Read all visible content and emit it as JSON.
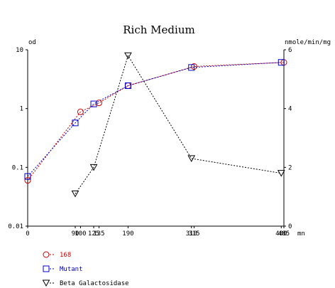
{
  "chart_data": {
    "type": "line",
    "title": "Rich Medium",
    "x_unit": "mn",
    "x_ticks": [
      "0",
      "90",
      "100",
      "125",
      "135",
      "190",
      "310",
      "315",
      "480",
      "485"
    ],
    "xlim": [
      0,
      485
    ],
    "y_left": {
      "unit": "od",
      "scale": "log",
      "lim": [
        0.01,
        10
      ],
      "ticks": [
        "0.01",
        "0.1",
        "1",
        "10"
      ]
    },
    "y_right": {
      "unit": "nmole/min/mg",
      "lim": [
        0,
        6
      ],
      "ticks": [
        "0",
        "2",
        "4",
        "6"
      ]
    },
    "grid": false,
    "legend_position": "bottom-left",
    "series": [
      {
        "name": "168",
        "axis": "left",
        "color": "#cc0000",
        "line_color": "#cc0000",
        "marker": "circle",
        "dashed": true,
        "x": [
          0,
          100,
          135,
          190,
          315,
          485
        ],
        "y": [
          0.06,
          0.88,
          1.25,
          2.45,
          5.2,
          6.1
        ]
      },
      {
        "name": "Mutant",
        "axis": "left",
        "color": "#0000cc",
        "line_color": "#0000cc",
        "marker": "square",
        "dashed": true,
        "x": [
          0,
          90,
          125,
          190,
          310,
          480
        ],
        "y": [
          0.07,
          0.57,
          1.2,
          2.45,
          5.0,
          6.1
        ]
      },
      {
        "name": "Beta Galactosidase",
        "axis": "right",
        "color": "#000000",
        "line_color": "#000000",
        "marker": "triangle-down",
        "dashed": true,
        "x": [
          90,
          125,
          190,
          310,
          480
        ],
        "y": [
          1.1,
          2.0,
          5.8,
          2.3,
          1.8
        ]
      }
    ]
  }
}
